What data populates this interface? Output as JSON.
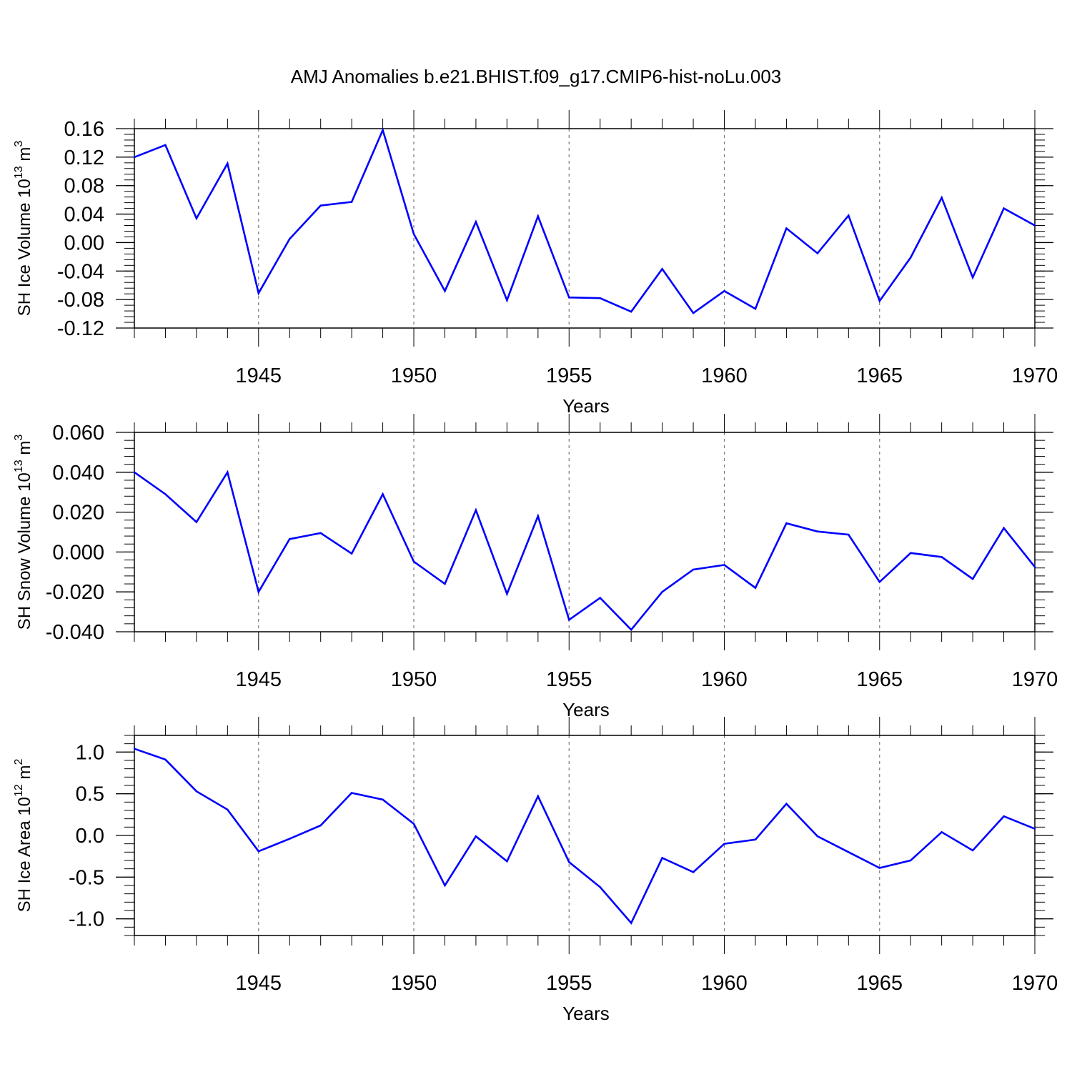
{
  "title": "AMJ Anomalies b.e21.BHIST.f09_g17.CMIP6-hist-noLu.003",
  "chart_data": [
    {
      "type": "line",
      "ylabel": {
        "prefix": "SH Ice Volume 10",
        "exp": "13",
        "unit": " m",
        "unit_exp": "3"
      },
      "xlabel": "Years",
      "xlim": [
        1941,
        1970
      ],
      "ylim": [
        -0.12,
        0.16
      ],
      "yticks": [
        "-0.12",
        "-0.08",
        "-0.04",
        "0.00",
        "0.04",
        "0.08",
        "0.12",
        "0.16"
      ],
      "ytick_values": [
        -0.12,
        -0.08,
        -0.04,
        0.0,
        0.04,
        0.08,
        0.12,
        0.16
      ],
      "xticks": [
        "1945",
        "1950",
        "1955",
        "1960",
        "1965",
        "1970"
      ],
      "xtick_values": [
        1945,
        1950,
        1955,
        1960,
        1965,
        1970
      ],
      "grid": "vertical dashed at major ticks",
      "line_color": "#0000ff",
      "x": [
        1941,
        1942,
        1943,
        1944,
        1945,
        1946,
        1947,
        1948,
        1949,
        1950,
        1951,
        1952,
        1953,
        1954,
        1955,
        1956,
        1957,
        1958,
        1959,
        1960,
        1961,
        1962,
        1963,
        1964,
        1965,
        1966,
        1967,
        1968,
        1969,
        1970
      ],
      "values": [
        0.12,
        0.137,
        0.034,
        0.111,
        -0.071,
        0.005,
        0.052,
        0.057,
        0.158,
        0.012,
        -0.068,
        0.029,
        -0.081,
        0.037,
        -0.077,
        -0.078,
        -0.097,
        -0.037,
        -0.099,
        -0.068,
        -0.093,
        0.02,
        -0.015,
        0.038,
        -0.082,
        -0.021,
        0.063,
        -0.049,
        0.048,
        0.024
      ]
    },
    {
      "type": "line",
      "ylabel": {
        "prefix": "SH Snow Volume 10",
        "exp": "13",
        "unit": " m",
        "unit_exp": "3"
      },
      "xlabel": "Years",
      "xlim": [
        1941,
        1970
      ],
      "ylim": [
        -0.04,
        0.06
      ],
      "yticks": [
        "-0.040",
        "-0.020",
        "0.000",
        "0.020",
        "0.040",
        "0.060"
      ],
      "ytick_values": [
        -0.04,
        -0.02,
        0.0,
        0.02,
        0.04,
        0.06
      ],
      "xticks": [
        "1945",
        "1950",
        "1955",
        "1960",
        "1965",
        "1970"
      ],
      "xtick_values": [
        1945,
        1950,
        1955,
        1960,
        1965,
        1970
      ],
      "grid": "vertical dashed at major ticks",
      "line_color": "#0000ff",
      "x": [
        1941,
        1942,
        1943,
        1944,
        1945,
        1946,
        1947,
        1948,
        1949,
        1950,
        1951,
        1952,
        1953,
        1954,
        1955,
        1956,
        1957,
        1958,
        1959,
        1960,
        1961,
        1962,
        1963,
        1964,
        1965,
        1966,
        1967,
        1968,
        1969,
        1970
      ],
      "values": [
        0.04,
        0.029,
        0.015,
        0.04,
        -0.02,
        0.0065,
        0.0095,
        -0.0008,
        0.029,
        -0.0048,
        -0.016,
        0.021,
        -0.021,
        0.018,
        -0.034,
        -0.023,
        -0.039,
        -0.02,
        -0.0088,
        -0.0065,
        -0.018,
        0.0144,
        0.0103,
        0.0087,
        -0.015,
        -0.0005,
        -0.0025,
        -0.0135,
        0.012,
        -0.0075
      ]
    },
    {
      "type": "line",
      "ylabel": {
        "prefix": "SH Ice Area 10",
        "exp": "12",
        "unit": " m",
        "unit_exp": "2"
      },
      "xlabel": "Years",
      "xlim": [
        1941,
        1970
      ],
      "ylim": [
        -1.2,
        1.2
      ],
      "yticks": [
        "-1.0",
        "-0.5",
        "0.0",
        "0.5",
        "1.0"
      ],
      "ytick_values": [
        -1.0,
        -0.5,
        0.0,
        0.5,
        1.0
      ],
      "xticks": [
        "1945",
        "1950",
        "1955",
        "1960",
        "1965",
        "1970"
      ],
      "xtick_values": [
        1945,
        1950,
        1955,
        1960,
        1965,
        1970
      ],
      "grid": "vertical dashed at major ticks",
      "line_color": "#0000ff",
      "x": [
        1941,
        1942,
        1943,
        1944,
        1945,
        1946,
        1947,
        1948,
        1949,
        1950,
        1951,
        1952,
        1953,
        1954,
        1955,
        1956,
        1957,
        1958,
        1959,
        1960,
        1961,
        1962,
        1963,
        1964,
        1965,
        1966,
        1967,
        1968,
        1969,
        1970
      ],
      "values": [
        1.04,
        0.91,
        0.53,
        0.31,
        -0.19,
        -0.04,
        0.12,
        0.51,
        0.43,
        0.14,
        -0.6,
        -0.01,
        -0.31,
        0.47,
        -0.32,
        -0.62,
        -1.05,
        -0.27,
        -0.44,
        -0.1,
        -0.05,
        0.38,
        -0.01,
        -0.2,
        -0.39,
        -0.3,
        0.04,
        -0.18,
        0.23,
        0.08
      ]
    }
  ]
}
